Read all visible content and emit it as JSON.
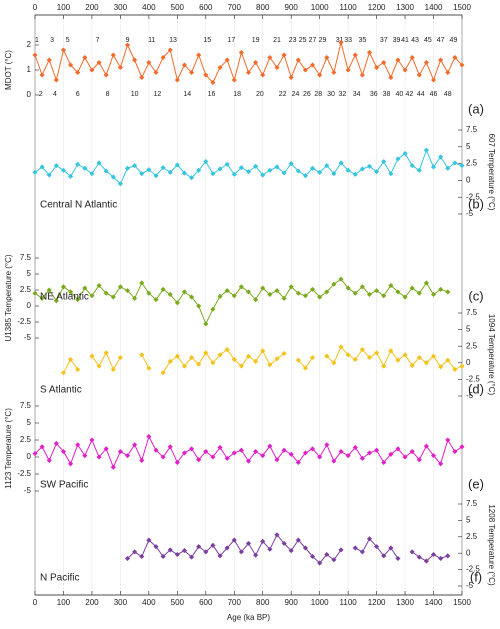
{
  "chart_data": [
    {
      "type": "line",
      "ylabel": "MDOT (°C)",
      "panel_label": "(a)",
      "yaxis_side": "left",
      "ylim": [
        -1,
        3
      ],
      "yticks": [
        0,
        1,
        2
      ],
      "xlim": [
        0,
        1500
      ],
      "xticks": [
        0,
        100,
        200,
        300,
        400,
        500,
        600,
        700,
        800,
        900,
        1000,
        1100,
        1200,
        1300,
        1400,
        1500
      ],
      "grid": true,
      "x": [
        0,
        25,
        50,
        75,
        100,
        125,
        150,
        175,
        200,
        225,
        250,
        275,
        300,
        325,
        350,
        375,
        400,
        425,
        450,
        475,
        500,
        525,
        550,
        575,
        600,
        625,
        650,
        675,
        700,
        725,
        750,
        775,
        800,
        825,
        850,
        875,
        900,
        925,
        950,
        975,
        1000,
        1025,
        1050,
        1075,
        1100,
        1125,
        1150,
        1175,
        1200,
        1225,
        1250,
        1275,
        1300,
        1325,
        1350,
        1375,
        1400,
        1425,
        1450,
        1475,
        1500
      ],
      "series": [
        {
          "color": "#f26b2a",
          "values": [
            1.6,
            0.8,
            1.4,
            0.6,
            1.8,
            1.2,
            0.9,
            1.5,
            1.0,
            1.3,
            0.8,
            1.6,
            1.1,
            2.0,
            1.4,
            0.7,
            1.3,
            0.9,
            1.5,
            1.8,
            0.6,
            1.2,
            0.9,
            1.6,
            0.8,
            0.5,
            1.1,
            1.4,
            0.6,
            1.7,
            0.9,
            1.3,
            0.8,
            1.5,
            1.1,
            1.6,
            0.7,
            1.4,
            1.0,
            1.2,
            0.8,
            1.5,
            0.9,
            2.1,
            1.0,
            1.6,
            0.8,
            1.7,
            1.1,
            1.3,
            0.7,
            1.4,
            1.0,
            1.5,
            0.8,
            1.3,
            0.6,
            1.4,
            0.9,
            1.5,
            1.2
          ]
        }
      ],
      "annotations": [
        {
          "text": "1",
          "x": 7
        },
        {
          "text": "2",
          "x": 20
        },
        {
          "text": "3",
          "x": 60
        },
        {
          "text": "4",
          "x": 70
        },
        {
          "text": "5",
          "x": 115
        },
        {
          "text": "6",
          "x": 150
        },
        {
          "text": "7",
          "x": 220
        },
        {
          "text": "8",
          "x": 255
        },
        {
          "text": "9",
          "x": 325
        },
        {
          "text": "10",
          "x": 350
        },
        {
          "text": "11",
          "x": 410
        },
        {
          "text": "12",
          "x": 430
        },
        {
          "text": "13",
          "x": 485
        },
        {
          "text": "14",
          "x": 535
        },
        {
          "text": "15",
          "x": 605
        },
        {
          "text": "16",
          "x": 620
        },
        {
          "text": "17",
          "x": 690
        },
        {
          "text": "18",
          "x": 710
        },
        {
          "text": "19",
          "x": 775
        },
        {
          "text": "20",
          "x": 790
        },
        {
          "text": "21",
          "x": 850
        },
        {
          "text": "22",
          "x": 870
        },
        {
          "text": "23",
          "x": 905
        },
        {
          "text": "24",
          "x": 915
        },
        {
          "text": "25",
          "x": 940
        },
        {
          "text": "26",
          "x": 955
        },
        {
          "text": "27",
          "x": 975
        },
        {
          "text": "28",
          "x": 995
        },
        {
          "text": "29",
          "x": 1010
        },
        {
          "text": "30",
          "x": 1040
        },
        {
          "text": "31",
          "x": 1070
        },
        {
          "text": "32",
          "x": 1080
        },
        {
          "text": "33",
          "x": 1100
        },
        {
          "text": "34",
          "x": 1130
        },
        {
          "text": "35",
          "x": 1150
        },
        {
          "text": "36",
          "x": 1190
        },
        {
          "text": "37",
          "x": 1225
        },
        {
          "text": "38",
          "x": 1235
        },
        {
          "text": "39",
          "x": 1270
        },
        {
          "text": "40",
          "x": 1280
        },
        {
          "text": "41",
          "x": 1300
        },
        {
          "text": "42",
          "x": 1315
        },
        {
          "text": "43",
          "x": 1335
        },
        {
          "text": "44",
          "x": 1355
        },
        {
          "text": "45",
          "x": 1380
        },
        {
          "text": "46",
          "x": 1400
        },
        {
          "text": "47",
          "x": 1425
        },
        {
          "text": "48",
          "x": 1450
        },
        {
          "text": "49",
          "x": 1470
        }
      ]
    },
    {
      "type": "line",
      "ylabel": "607 Temperature (°C)",
      "panel_label": "(b)",
      "yaxis_side": "right",
      "ylim": [
        -5,
        7.5
      ],
      "yticks": [
        -5,
        -2.5,
        0,
        2.5,
        5,
        7.5
      ],
      "x": [
        0,
        25,
        50,
        75,
        100,
        125,
        150,
        175,
        200,
        225,
        250,
        275,
        300,
        325,
        350,
        375,
        400,
        425,
        450,
        475,
        500,
        525,
        550,
        575,
        600,
        625,
        650,
        675,
        700,
        725,
        750,
        775,
        800,
        825,
        850,
        875,
        900,
        925,
        950,
        975,
        1000,
        1025,
        1050,
        1075,
        1100,
        1125,
        1150,
        1175,
        1200,
        1225,
        1250,
        1275,
        1300,
        1325,
        1350,
        1375,
        1400,
        1425,
        1450,
        1475,
        1500
      ],
      "series": [
        {
          "name": "Central N Atlantic",
          "color": "#36c5e0",
          "values": [
            1.2,
            2.0,
            0.8,
            2.2,
            1.5,
            0.6,
            2.4,
            1.8,
            1.0,
            2.6,
            1.4,
            0.5,
            -0.5,
            1.8,
            2.2,
            1.0,
            1.6,
            0.7,
            1.9,
            1.2,
            2.3,
            1.1,
            0.4,
            1.5,
            2.8,
            1.0,
            1.7,
            2.4,
            0.9,
            1.9,
            1.3,
            2.1,
            0.8,
            1.5,
            2.0,
            1.1,
            2.5,
            1.4,
            0.7,
            1.8,
            1.2,
            2.2,
            1.0,
            2.6,
            1.5,
            0.9,
            1.7,
            2.1,
            1.3,
            2.8,
            1.0,
            3.2,
            4.0,
            2.2,
            1.5,
            4.5,
            2.0,
            3.5,
            1.8,
            2.6,
            2.2
          ]
        }
      ]
    },
    {
      "type": "line",
      "ylabel": "U1385 Temperature (°C)",
      "panel_label": "(c)",
      "yaxis_side": "left",
      "ylim": [
        -5,
        7.5
      ],
      "yticks": [
        -5,
        -2.5,
        0,
        2.5,
        5,
        7.5
      ],
      "x": [
        0,
        25,
        50,
        75,
        100,
        125,
        150,
        175,
        200,
        225,
        250,
        275,
        300,
        325,
        350,
        375,
        400,
        425,
        450,
        475,
        500,
        525,
        550,
        575,
        600,
        625,
        650,
        675,
        700,
        725,
        750,
        775,
        800,
        825,
        850,
        875,
        900,
        925,
        950,
        975,
        1000,
        1025,
        1050,
        1075,
        1100,
        1125,
        1150,
        1175,
        1200,
        1225,
        1250,
        1275,
        1300,
        1325,
        1350,
        1375,
        1400,
        1425,
        1450,
        1475,
        1500
      ],
      "series": [
        {
          "name": "NE Atlantic",
          "color": "#7aaa1e",
          "values": [
            2.0,
            1.2,
            2.5,
            0.8,
            3.0,
            2.2,
            1.0,
            2.8,
            1.6,
            3.2,
            2.0,
            1.4,
            3.0,
            2.4,
            1.2,
            3.6,
            2.0,
            1.0,
            2.6,
            1.8,
            0.5,
            2.2,
            1.4,
            0.0,
            -2.8,
            -0.5,
            1.5,
            2.4,
            1.6,
            3.0,
            2.2,
            1.0,
            2.8,
            1.8,
            2.4,
            1.2,
            3.0,
            2.0,
            1.6,
            2.6,
            1.4,
            2.2,
            3.4,
            4.2,
            2.8,
            2.0,
            3.0,
            1.8,
            2.4,
            1.6,
            3.2,
            2.2,
            1.4,
            2.8,
            2.0,
            3.6,
            1.8,
            2.6,
            2.2,
            null,
            null
          ]
        }
      ]
    },
    {
      "type": "line",
      "ylabel": "1094 Temperature (°C)",
      "panel_label": "(d)",
      "yaxis_side": "right",
      "ylim": [
        -5,
        7.5
      ],
      "yticks": [
        -5,
        -2.5,
        0,
        2.5,
        5,
        7.5
      ],
      "x": [
        0,
        25,
        50,
        75,
        100,
        125,
        150,
        175,
        200,
        225,
        250,
        275,
        300,
        325,
        350,
        375,
        400,
        425,
        450,
        475,
        500,
        525,
        550,
        575,
        600,
        625,
        650,
        675,
        700,
        725,
        750,
        775,
        800,
        825,
        850,
        875,
        900,
        925,
        950,
        975,
        1000,
        1025,
        1050,
        1075,
        1100,
        1125,
        1150,
        1175,
        1200,
        1225,
        1250,
        1275,
        1300,
        1325,
        1350,
        1375,
        1400,
        1425,
        1450,
        1475,
        1500
      ],
      "series": [
        {
          "name": "S Atlantic",
          "color": "#f5c21b",
          "values": [
            null,
            null,
            null,
            null,
            -1.5,
            0.5,
            -1.0,
            null,
            1.0,
            -0.5,
            1.5,
            -1.0,
            0.8,
            null,
            null,
            1.2,
            -0.8,
            null,
            -1.5,
            0.2,
            1.0,
            -0.5,
            0.8,
            -0.2,
            1.5,
            0.0,
            1.2,
            2.0,
            0.5,
            -0.5,
            1.0,
            0.2,
            1.8,
            -0.3,
            0.6,
            1.4,
            null,
            0.4,
            -0.8,
            0.8,
            null,
            1.0,
            0.0,
            2.4,
            1.2,
            0.5,
            2.0,
            0.8,
            1.5,
            -0.5,
            1.8,
            0.4,
            1.2,
            -0.4,
            0.8,
            0.0,
            1.0,
            -0.6,
            0.4,
            -1.0,
            -0.5
          ]
        }
      ]
    },
    {
      "type": "line",
      "ylabel": "1123 Temperature (°C)",
      "panel_label": "(e)",
      "yaxis_side": "left",
      "ylim": [
        -5,
        7.5
      ],
      "yticks": [
        -5,
        -2.5,
        0,
        2.5,
        5,
        7.5
      ],
      "x": [
        0,
        25,
        50,
        75,
        100,
        125,
        150,
        175,
        200,
        225,
        250,
        275,
        300,
        325,
        350,
        375,
        400,
        425,
        450,
        475,
        500,
        525,
        550,
        575,
        600,
        625,
        650,
        675,
        700,
        725,
        750,
        775,
        800,
        825,
        850,
        875,
        900,
        925,
        950,
        975,
        1000,
        1025,
        1050,
        1075,
        1100,
        1125,
        1150,
        1175,
        1200,
        1225,
        1250,
        1275,
        1300,
        1325,
        1350,
        1375,
        1400,
        1425,
        1450,
        1475,
        1500
      ],
      "series": [
        {
          "name": "SW Pacific",
          "color": "#e020c8",
          "values": [
            0.5,
            1.5,
            -0.5,
            2.0,
            0.8,
            -1.0,
            1.8,
            0.2,
            2.5,
            0.0,
            1.2,
            -1.5,
            0.8,
            0.2,
            1.8,
            -0.5,
            3.0,
            1.0,
            0.0,
            1.5,
            -0.8,
            0.6,
            1.2,
            -0.4,
            0.8,
            0.0,
            1.4,
            -0.2,
            0.6,
            1.0,
            -0.6,
            0.8,
            0.2,
            1.6,
            -0.4,
            1.0,
            0.4,
            -0.8,
            0.6,
            1.2,
            0.0,
            1.8,
            -0.6,
            0.8,
            0.2,
            1.4,
            -0.2,
            0.6,
            1.0,
            -0.8,
            0.4,
            1.2,
            0.0,
            0.8,
            -0.4,
            1.6,
            0.2,
            -1.0,
            2.5,
            0.8,
            1.5
          ]
        }
      ]
    },
    {
      "type": "line",
      "ylabel": "1208 Temperature (°C)",
      "panel_label": "(f)",
      "yaxis_side": "right",
      "ylim": [
        -5,
        7.5
      ],
      "yticks": [
        -5,
        -2.5,
        0,
        2.5,
        5,
        7.5
      ],
      "xlim": [
        0,
        1500
      ],
      "xticks": [
        0,
        100,
        200,
        300,
        400,
        500,
        600,
        700,
        800,
        900,
        1000,
        1100,
        1200,
        1300,
        1400,
        1500
      ],
      "xlabel": "Age (ka BP)",
      "x": [
        0,
        25,
        50,
        75,
        100,
        125,
        150,
        175,
        200,
        225,
        250,
        275,
        300,
        325,
        350,
        375,
        400,
        425,
        450,
        475,
        500,
        525,
        550,
        575,
        600,
        625,
        650,
        675,
        700,
        725,
        750,
        775,
        800,
        825,
        850,
        875,
        900,
        925,
        950,
        975,
        1000,
        1025,
        1050,
        1075,
        1100,
        1125,
        1150,
        1175,
        1200,
        1225,
        1250,
        1275,
        1300,
        1325,
        1350,
        1375,
        1400,
        1425,
        1450,
        1475,
        1500
      ],
      "series": [
        {
          "name": "N Pacific",
          "color": "#7b3fa0",
          "values": [
            null,
            null,
            null,
            null,
            null,
            null,
            null,
            null,
            null,
            null,
            null,
            null,
            null,
            -0.8,
            0.2,
            -0.5,
            2.0,
            1.0,
            -0.5,
            0.5,
            -0.2,
            0.4,
            -0.6,
            1.0,
            0.2,
            1.2,
            -0.4,
            0.8,
            2.0,
            0.2,
            1.5,
            -0.3,
            1.8,
            0.6,
            2.8,
            1.5,
            0.4,
            2.0,
            0.8,
            -0.5,
            -1.5,
            -0.2,
            -1.0,
            0.5,
            null,
            0.8,
            0.2,
            2.2,
            1.0,
            -0.4,
            0.8,
            -0.8,
            null,
            0.2,
            -0.6,
            -1.2,
            -0.2,
            -0.8,
            -0.4,
            null,
            null
          ]
        }
      ]
    }
  ]
}
